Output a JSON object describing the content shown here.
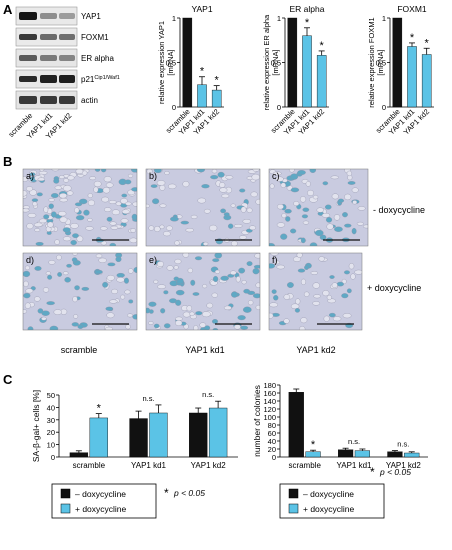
{
  "panels": {
    "a": "A",
    "b": "B",
    "c": "C"
  },
  "blot": {
    "bands": [
      "YAP1",
      "FOXM1",
      "ER alpha",
      "actin"
    ],
    "p21_main": "p21",
    "p21_sup": "Cip1/Waf1",
    "lanes": [
      "scramble",
      "YAP1 kd1",
      "YAP1 kd2"
    ]
  },
  "micro": {
    "tiles": [
      "a)",
      "b)",
      "c)",
      "d)",
      "e)",
      "f)"
    ],
    "row_labels": [
      "- doxycycline",
      "+ doxycycline"
    ],
    "col_labels": [
      "scramble",
      "YAP1 kd1",
      "YAP1 kd2"
    ]
  },
  "legend": {
    "minus": "– doxycycline",
    "plus": "+ doxycycline",
    "sig_star": "*",
    "sig_text": "p < 0.05"
  },
  "colors": {
    "black": "#111111",
    "cyan": "#5bc3e6"
  },
  "chart_data": [
    {
      "type": "bar",
      "title": "YAP1",
      "ylabel": "relative expression YAP1 [mRNA]",
      "categories": [
        "scramble",
        "YAP1 kd1",
        "YAP1 kd2"
      ],
      "values": [
        1.0,
        0.25,
        0.19
      ],
      "errors": [
        0,
        0.09,
        0.05
      ],
      "colors": [
        "#111111",
        "#5bc3e6",
        "#5bc3e6"
      ],
      "stars": [
        "",
        "*",
        "*"
      ],
      "ylim": [
        0,
        1
      ],
      "yticks": [
        0,
        0.5,
        1
      ]
    },
    {
      "type": "bar",
      "title": "ER alpha",
      "ylabel": "relative expression ER alpha [mRNA]",
      "categories": [
        "scramble",
        "YAP1 kd1",
        "YAP1 kd2"
      ],
      "values": [
        1.0,
        0.8,
        0.58
      ],
      "errors": [
        0,
        0.09,
        0.05
      ],
      "colors": [
        "#111111",
        "#5bc3e6",
        "#5bc3e6"
      ],
      "stars": [
        "",
        "*",
        "*"
      ],
      "ylim": [
        0,
        1
      ],
      "yticks": [
        0,
        0.5,
        1
      ]
    },
    {
      "type": "bar",
      "title": "FOXM1",
      "ylabel": "relative expression FOXM1 [mRNA]",
      "categories": [
        "scramble",
        "YAP1 kd1",
        "YAP1 kd2"
      ],
      "values": [
        1.0,
        0.68,
        0.59
      ],
      "errors": [
        0,
        0.04,
        0.07
      ],
      "colors": [
        "#111111",
        "#5bc3e6",
        "#5bc3e6"
      ],
      "stars": [
        "",
        "*",
        "*"
      ],
      "ylim": [
        0,
        1
      ],
      "yticks": [
        0,
        0.5,
        1
      ]
    },
    {
      "type": "bar",
      "title": "",
      "ylabel": "SA-β-gal+ cells [%]",
      "categories": [
        "scramble",
        "YAP1 kd1",
        "YAP1 kd2"
      ],
      "series": [
        {
          "name": "– doxycycline",
          "values": [
            3.5,
            31,
            35.5
          ],
          "errors": [
            1.5,
            6,
            4
          ],
          "color": "#111111"
        },
        {
          "name": "+ doxycycline",
          "values": [
            31.5,
            35.5,
            39.5
          ],
          "errors": [
            3.5,
            6.5,
            5.5
          ],
          "color": "#5bc3e6"
        }
      ],
      "annotations": [
        "*",
        "n.s.",
        "n.s."
      ],
      "ylim": [
        0,
        50
      ],
      "yticks": [
        0,
        10,
        20,
        30,
        40,
        50
      ]
    },
    {
      "type": "bar",
      "title": "",
      "ylabel": "number of colonies",
      "categories": [
        "scramble",
        "YAP1 kd1",
        "YAP1 kd2"
      ],
      "series": [
        {
          "name": "– doxycycline",
          "values": [
            162,
            18,
            13
          ],
          "errors": [
            8,
            4,
            3
          ],
          "color": "#111111"
        },
        {
          "name": "+ doxycycline",
          "values": [
            13,
            16,
            10
          ],
          "errors": [
            4,
            4,
            3
          ],
          "color": "#5bc3e6"
        }
      ],
      "annotations": [
        "*",
        "n.s.",
        "n.s."
      ],
      "ylim": [
        0,
        180
      ],
      "yticks": [
        0,
        20,
        40,
        60,
        80,
        100,
        120,
        140,
        160,
        180
      ]
    }
  ]
}
